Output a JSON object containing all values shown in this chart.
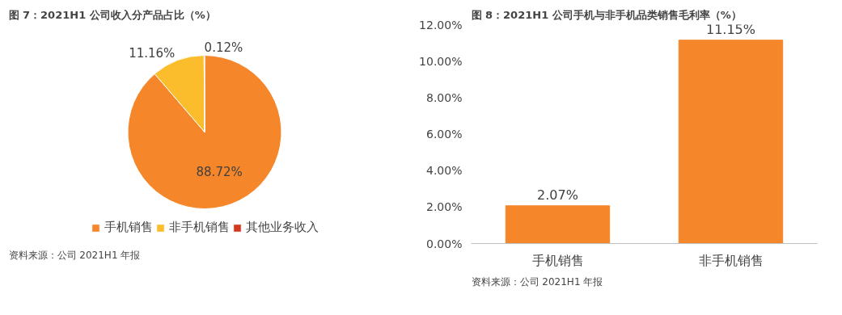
{
  "chart_data": [
    {
      "type": "pie",
      "title": "图 7：2021H1 公司收入分产品占比（%）",
      "categories": [
        "手机销售",
        "非手机销售",
        "其他业务收入"
      ],
      "values": [
        88.72,
        11.16,
        0.12
      ],
      "colors": [
        "#f5862a",
        "#fbbd2c",
        "#d0391e"
      ],
      "value_labels": [
        "88.72%",
        "11.16%",
        "0.12%"
      ],
      "legend": "bottom",
      "annotations": [
        "资料来源：公司 2021H1 年报"
      ]
    },
    {
      "type": "bar",
      "title": "图 8：2021H1 公司手机与非手机品类销售毛利率（%）",
      "categories": [
        "手机销售",
        "非手机销售"
      ],
      "values": [
        2.07,
        11.15
      ],
      "color": "#f5862a",
      "value_labels": [
        "2.07%",
        "11.15%"
      ],
      "ylim": [
        0,
        12
      ],
      "yticks": [
        {
          "value": 0,
          "label": "0.00%"
        },
        {
          "value": 2,
          "label": "2.00%"
        },
        {
          "value": 4,
          "label": "4.00%"
        },
        {
          "value": 6,
          "label": "6.00%"
        },
        {
          "value": 8,
          "label": "8.00%"
        },
        {
          "value": 10,
          "label": "10.00%"
        },
        {
          "value": 12,
          "label": "12.00%"
        }
      ],
      "annotations": [
        "资料来源：公司 2021H1 年报"
      ]
    }
  ]
}
